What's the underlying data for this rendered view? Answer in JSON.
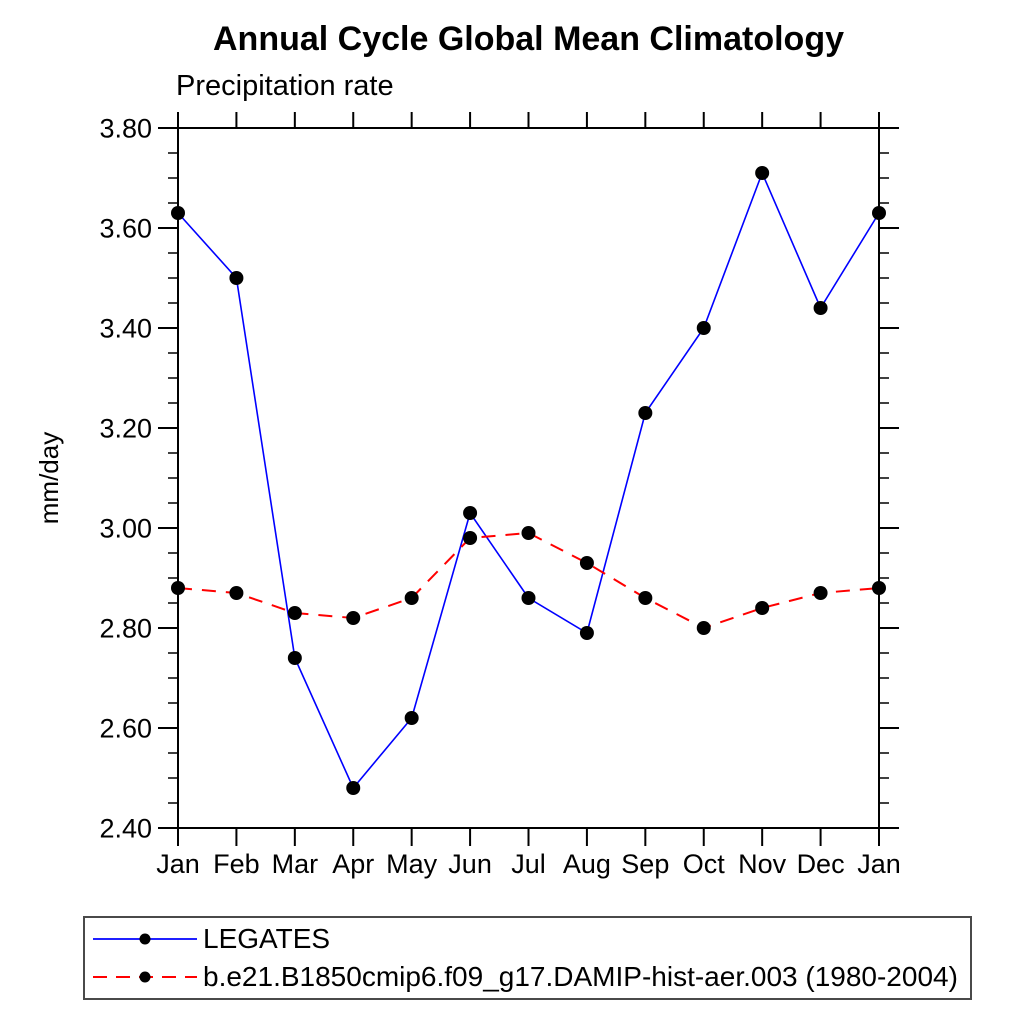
{
  "title": "Annual Cycle Global Mean Climatology",
  "subtitle": "Precipitation rate",
  "y_axis_label": "mm/day",
  "colors": {
    "axis": "#000000",
    "marker": "#000000",
    "legates_line": "#0000ff",
    "model_line": "#ff0000",
    "legend_border": "#4a4a4a"
  },
  "chart_data": {
    "type": "line",
    "title": "Annual Cycle Global Mean Climatology",
    "subtitle": "Precipitation rate",
    "xlabel": "",
    "ylabel": "mm/day",
    "categories": [
      "Jan",
      "Feb",
      "Mar",
      "Apr",
      "May",
      "Jun",
      "Jul",
      "Aug",
      "Sep",
      "Oct",
      "Nov",
      "Dec",
      "Jan"
    ],
    "series": [
      {
        "name": "LEGATES",
        "color": "#0000ff",
        "line_style": "solid",
        "marker": "filled-circle",
        "values": [
          3.63,
          3.5,
          2.74,
          2.48,
          2.62,
          3.03,
          2.86,
          2.79,
          3.23,
          3.4,
          3.71,
          3.44,
          3.63
        ]
      },
      {
        "name": "b.e21.B1850cmip6.f09_g17.DAMIP-hist-aer.003 (1980-2004)",
        "color": "#ff0000",
        "line_style": "dashed",
        "marker": "filled-circle",
        "values": [
          2.88,
          2.87,
          2.83,
          2.82,
          2.86,
          2.98,
          2.99,
          2.93,
          2.86,
          2.8,
          2.84,
          2.87,
          2.88
        ]
      }
    ],
    "ylim": [
      2.4,
      3.8
    ],
    "ytick_step": 0.2,
    "yminor_step": 0.05,
    "ytick_format": "0.00",
    "grid": false,
    "legend_position": "bottom-left"
  }
}
